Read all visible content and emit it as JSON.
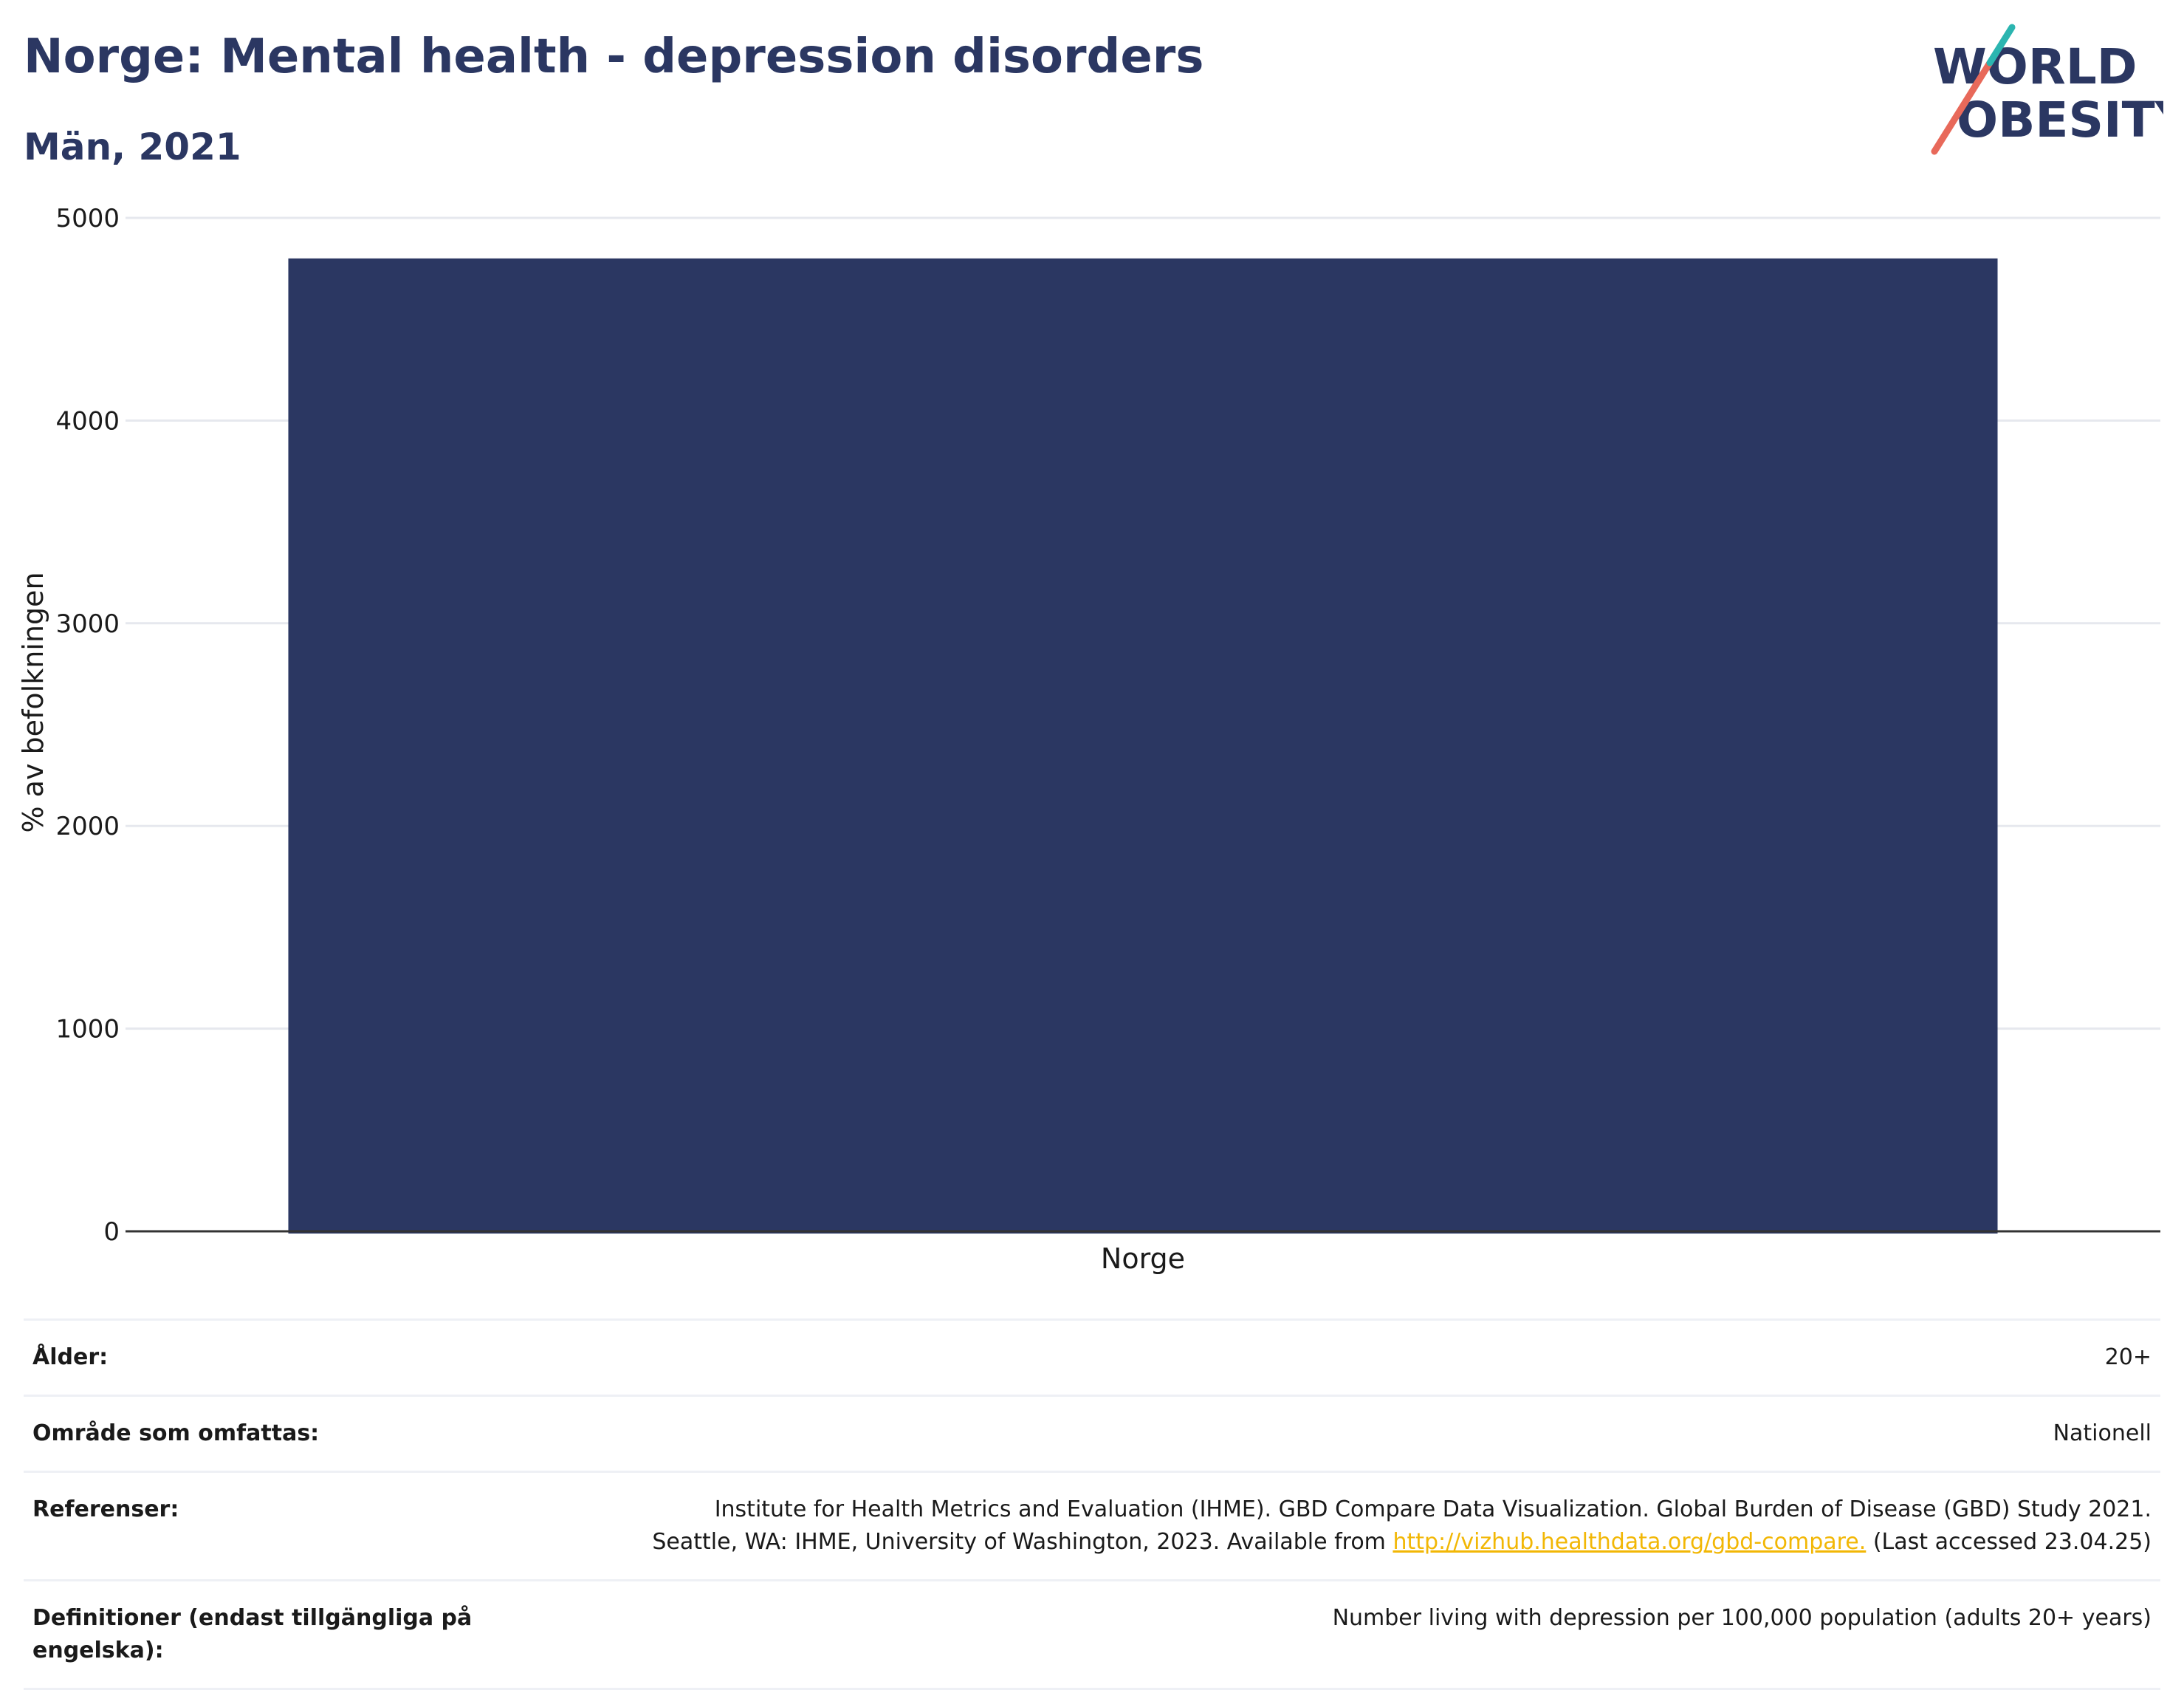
{
  "title": "Norge: Mental health - depression disorders",
  "subtitle": "Män, 2021",
  "logo": {
    "line1": "WORLD",
    "line2": "OBESITY",
    "colors": {
      "text": "#2b3762",
      "slash_red": "#e8695a",
      "slash_teal": "#2bb5b0"
    }
  },
  "colors": {
    "bar": "#2b3762",
    "title": "#2b3762",
    "grid": "#e6e8ee",
    "axis": "#333333",
    "link": "#f2b705"
  },
  "chart_data": {
    "type": "bar",
    "categories": [
      "Norge"
    ],
    "values": [
      4800
    ],
    "ylabel": "% av befolkningen",
    "xlabel": "",
    "ylim": [
      0,
      5000
    ],
    "yticks": [
      0,
      1000,
      2000,
      3000,
      4000,
      5000
    ],
    "grid": true
  },
  "meta": [
    {
      "key": "Ålder:",
      "value": "20+"
    },
    {
      "key": "Område som omfattas:",
      "value": "Nationell"
    },
    {
      "key": "Referenser:",
      "value_line1": "Institute for Health Metrics and Evaluation (IHME). GBD Compare Data Visualization. Global Burden of Disease (GBD) Study 2021.",
      "value_line2_pre": "Seattle, WA: IHME, University of Washington, 2023. Available from ",
      "value_link": "http://vizhub.healthdata.org/gbd-compare.",
      "value_line2_post": " (Last accessed 23.04.25)"
    },
    {
      "key": "Definitioner (endast tillgängliga på engelska):",
      "value": "Number living with depression per 100,000 population (adults 20+ years)"
    }
  ]
}
